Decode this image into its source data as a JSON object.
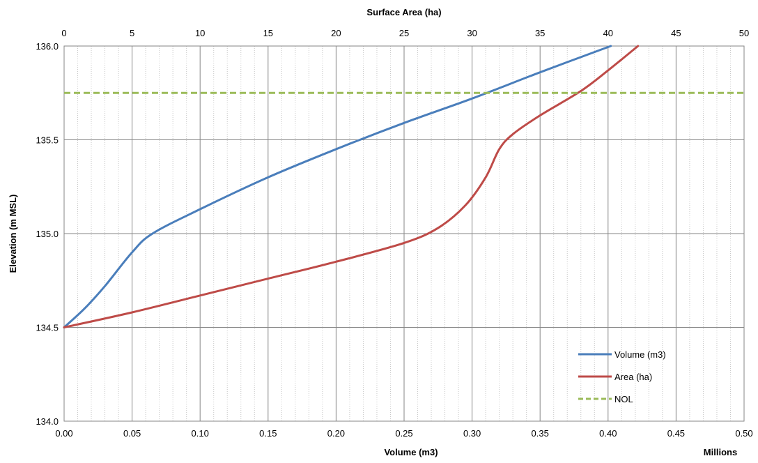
{
  "chart_data": {
    "type": "line",
    "top_axis": {
      "label": "Surface Area (ha)",
      "range": [
        0,
        50
      ],
      "ticks": [
        0,
        5,
        10,
        15,
        20,
        25,
        30,
        35,
        40,
        45,
        50
      ],
      "tick_labels": [
        "0",
        "5",
        "10",
        "15",
        "20",
        "25",
        "30",
        "35",
        "40",
        "45",
        "50"
      ]
    },
    "bottom_axis": {
      "label": "Volume (m3)",
      "units_note": "Millions",
      "range": [
        0,
        0.5
      ],
      "ticks": [
        0,
        0.05,
        0.1,
        0.15,
        0.2,
        0.25,
        0.3,
        0.35,
        0.4,
        0.45,
        0.5
      ],
      "tick_labels": [
        "0.00",
        "0.05",
        "0.10",
        "0.15",
        "0.20",
        "0.25",
        "0.30",
        "0.35",
        "0.40",
        "0.45",
        "0.50"
      ]
    },
    "y_axis": {
      "label": "Elevation (m MSL)",
      "range": [
        134.0,
        136.0
      ],
      "ticks": [
        134.0,
        134.5,
        135.0,
        135.5,
        136.0
      ],
      "tick_labels": [
        "134.0",
        "134.5",
        "135.0",
        "135.5",
        "136.0"
      ]
    },
    "grid": true,
    "legend_position": "bottom-right",
    "series": [
      {
        "name": "Volume (m3)",
        "axis": "bottom",
        "color": "#4a7ebb",
        "style": "solid",
        "points": [
          [
            0.0,
            134.5
          ],
          [
            0.015,
            134.6
          ],
          [
            0.03,
            134.72
          ],
          [
            0.05,
            134.9
          ],
          [
            0.065,
            135.0
          ],
          [
            0.1,
            135.13
          ],
          [
            0.15,
            135.3
          ],
          [
            0.2,
            135.45
          ],
          [
            0.25,
            135.59
          ],
          [
            0.3,
            135.72
          ],
          [
            0.35,
            135.86
          ],
          [
            0.402,
            136.0
          ]
        ]
      },
      {
        "name": "Area (ha)",
        "axis": "top",
        "color": "#be4b48",
        "style": "solid",
        "points": [
          [
            0.0,
            134.5
          ],
          [
            5,
            134.58
          ],
          [
            10,
            134.67
          ],
          [
            15,
            134.76
          ],
          [
            20,
            134.85
          ],
          [
            25,
            134.95
          ],
          [
            27.5,
            135.03
          ],
          [
            29.5,
            135.15
          ],
          [
            31,
            135.3
          ],
          [
            32,
            135.45
          ],
          [
            33,
            135.53
          ],
          [
            35,
            135.63
          ],
          [
            38,
            135.76
          ],
          [
            40,
            135.87
          ],
          [
            42.2,
            136.0
          ]
        ]
      },
      {
        "name": "NOL",
        "axis": "bottom",
        "color": "#9bbb59",
        "style": "dashed",
        "points": [
          [
            0.0,
            135.75
          ],
          [
            0.5,
            135.75
          ]
        ]
      }
    ]
  }
}
